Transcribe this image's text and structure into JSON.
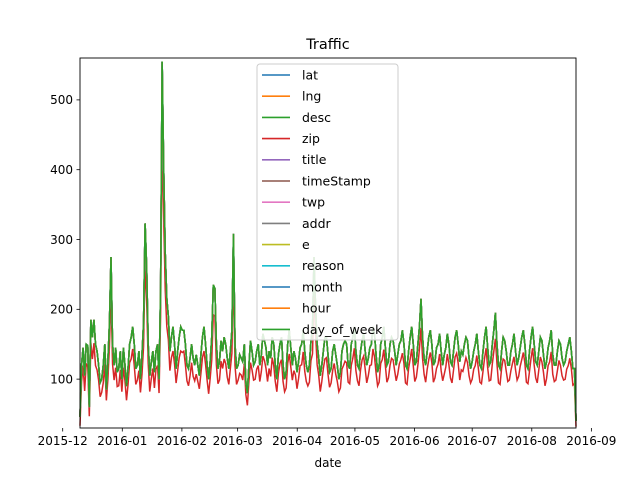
{
  "chart_data": {
    "type": "line",
    "title": "Traffic",
    "xlabel": "date",
    "ylabel": "",
    "x_range": [
      "2015-12-10",
      "2016-08-24"
    ],
    "ylim": [
      30,
      560
    ],
    "x_ticks": [
      "2015-12",
      "2016-01",
      "2016-02",
      "2016-03",
      "2016-04",
      "2016-05",
      "2016-06",
      "2016-07",
      "2016-08",
      "2016-09"
    ],
    "y_ticks": [
      100,
      200,
      300,
      400,
      500
    ],
    "grid": false,
    "legend_position": "top-center",
    "legend": [
      {
        "name": "lat",
        "color": "#1f77b4"
      },
      {
        "name": "lng",
        "color": "#ff7f0e"
      },
      {
        "name": "desc",
        "color": "#2ca02c"
      },
      {
        "name": "zip",
        "color": "#d62728"
      },
      {
        "name": "title",
        "color": "#9467bd"
      },
      {
        "name": "timeStamp",
        "color": "#8c564b"
      },
      {
        "name": "twp",
        "color": "#e377c2"
      },
      {
        "name": "addr",
        "color": "#7f7f7f"
      },
      {
        "name": "e",
        "color": "#bcbd22"
      },
      {
        "name": "reason",
        "color": "#17becf"
      },
      {
        "name": "month",
        "color": "#1f77b4"
      },
      {
        "name": "hour",
        "color": "#ff7f0e"
      },
      {
        "name": "day_of_week",
        "color": "#2ca02c"
      }
    ],
    "series_full": {
      "start_date": "2015-12-10",
      "values": [
        46,
        120,
        145,
        105,
        150,
        148,
        60,
        185,
        160,
        185,
        150,
        140,
        120,
        95,
        100,
        120,
        150,
        85,
        125,
        180,
        275,
        150,
        120,
        145,
        110,
        115,
        140,
        100,
        145,
        120,
        90,
        115,
        150,
        160,
        175,
        150,
        115,
        120,
        140,
        100,
        135,
        180,
        323,
        260,
        150,
        105,
        125,
        140,
        110,
        140,
        150,
        100,
        230,
        555,
        400,
        280,
        215,
        190,
        140,
        160,
        175,
        150,
        115,
        140,
        160,
        175,
        170,
        170,
        150,
        120,
        115,
        130,
        150,
        130,
        120,
        135,
        120,
        105,
        135,
        160,
        175,
        150,
        120,
        100,
        125,
        160,
        235,
        230,
        150,
        115,
        125,
        155,
        140,
        160,
        150,
        130,
        115,
        140,
        170,
        308,
        150,
        115,
        120,
        135,
        130,
        125,
        150,
        95,
        80,
        120,
        155,
        140,
        120,
        125,
        140,
        150,
        120,
        135,
        165,
        155,
        145,
        120,
        140,
        130,
        160,
        150,
        120,
        100,
        135,
        150,
        160,
        120,
        100,
        110,
        150,
        170,
        145,
        120,
        140,
        130,
        110,
        125,
        145,
        150,
        170,
        140,
        120,
        110,
        120,
        155,
        170,
        275,
        200,
        150,
        130,
        105,
        120,
        140,
        160,
        160,
        135,
        110,
        115,
        140,
        150,
        135,
        120,
        100,
        110,
        140,
        150,
        155,
        150,
        120,
        115,
        150,
        160,
        175,
        140,
        120,
        115,
        140,
        155,
        165,
        140,
        120,
        130,
        145,
        150,
        175,
        165,
        135,
        110,
        120,
        150,
        160,
        175,
        145,
        120,
        125,
        150,
        160,
        155,
        140,
        120,
        135,
        150,
        155,
        170,
        150,
        120,
        115,
        140,
        160,
        175,
        150,
        120,
        125,
        150,
        175,
        215,
        160,
        130,
        120,
        140,
        160,
        170,
        150,
        120,
        125,
        145,
        150,
        165,
        140,
        120,
        135,
        145,
        165,
        150,
        125,
        120,
        140,
        160,
        170,
        150,
        125,
        140,
        135,
        150,
        160,
        155,
        130,
        115,
        125,
        140,
        150,
        165,
        140,
        120,
        115,
        140,
        160,
        175,
        145,
        120,
        125,
        150,
        170,
        195,
        150,
        120,
        115,
        140,
        160,
        155,
        140,
        120,
        120,
        140,
        150,
        165,
        140,
        120,
        130,
        145,
        160,
        170,
        150,
        120,
        115,
        140,
        160,
        175,
        150,
        125,
        120,
        140,
        160,
        155,
        135,
        115,
        125,
        145,
        155,
        170,
        135,
        120,
        120,
        140,
        155,
        150,
        130,
        120,
        125,
        140,
        150,
        160,
        140,
        115,
        115,
        40
      ]
    }
  }
}
